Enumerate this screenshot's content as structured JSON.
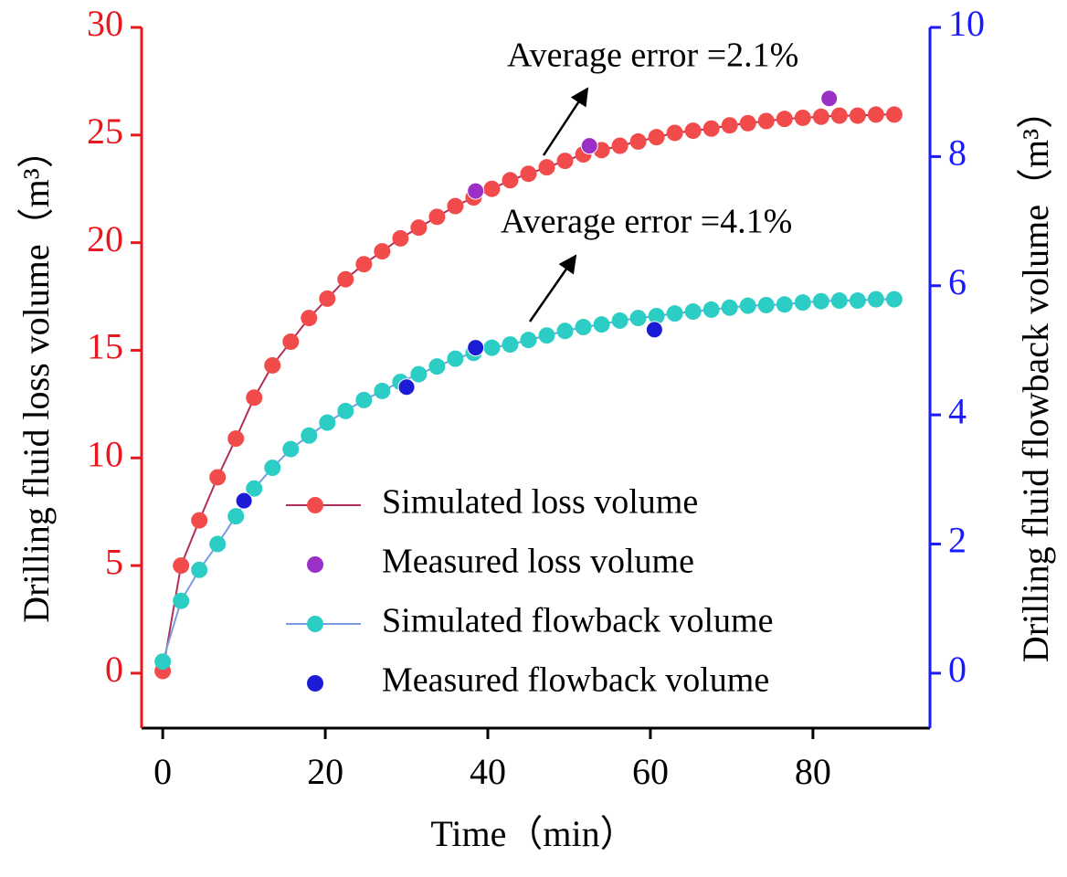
{
  "chart_data": {
    "type": "line",
    "xlabel": "Time（min）",
    "ylabel": "Drilling fluid loss volume（m³）",
    "y2label": "Drilling fluid flowback volume（m³）",
    "xlim": [
      -2.6,
      94.4
    ],
    "xticks": [
      0,
      20,
      40,
      60,
      80
    ],
    "ylim": [
      -2.55,
      30
    ],
    "yticks": [
      0,
      5,
      10,
      15,
      20,
      25,
      30
    ],
    "y2lim": [
      -0.85,
      10
    ],
    "y2ticks": [
      0,
      2,
      4,
      6,
      8,
      10
    ],
    "y_axis_color": "#e8191e",
    "y2_axis_color": "#1a1aff",
    "legend": "lower right",
    "annotations": [
      {
        "text": "Average error =2.1%"
      },
      {
        "text": "Average error =4.1%"
      }
    ],
    "series": [
      {
        "name": "Simulated loss volume",
        "mode": "line+markers",
        "color": "#f24b4b",
        "line_color": "#b0305a",
        "axis": "y",
        "x": [
          0,
          2.25,
          4.5,
          6.75,
          9,
          11.25,
          13.5,
          15.75,
          18,
          20.25,
          22.5,
          24.75,
          27,
          29.25,
          31.5,
          33.75,
          36,
          38.25,
          40.5,
          42.75,
          45,
          47.25,
          49.5,
          51.75,
          54,
          56.25,
          58.5,
          60.75,
          63,
          65.25,
          67.5,
          69.75,
          72,
          74.25,
          76.5,
          78.75,
          81,
          83.25,
          85.5,
          87.75,
          90
        ],
        "values": [
          0.1,
          5,
          7.1,
          9.1,
          10.9,
          12.8,
          14.3,
          15.4,
          16.5,
          17.4,
          18.3,
          19.0,
          19.6,
          20.2,
          20.7,
          21.2,
          21.7,
          22.1,
          22.5,
          22.9,
          23.2,
          23.5,
          23.8,
          24.1,
          24.3,
          24.5,
          24.7,
          24.9,
          25.1,
          25.2,
          25.3,
          25.45,
          25.55,
          25.65,
          25.75,
          25.8,
          25.85,
          25.9,
          25.9,
          25.95,
          25.95
        ]
      },
      {
        "name": "Measured loss volume",
        "mode": "markers",
        "color": "#9b30c8",
        "axis": "y",
        "x": [
          38.5,
          52.5,
          82
        ],
        "values": [
          22.4,
          24.5,
          26.7
        ]
      },
      {
        "name": "Simulated flowback volume",
        "mode": "line+markers",
        "color": "#2ccdc4",
        "line_color": "#7b9be0",
        "axis": "y2",
        "x": [
          0,
          2.25,
          4.5,
          6.75,
          9,
          11.25,
          13.5,
          15.75,
          18,
          20.25,
          22.5,
          24.75,
          27,
          29.25,
          31.5,
          33.75,
          36,
          38.25,
          40.5,
          42.75,
          45,
          47.25,
          49.5,
          51.75,
          54,
          56.25,
          58.5,
          60.75,
          63,
          65.25,
          67.5,
          69.75,
          72,
          74.25,
          76.5,
          78.75,
          81,
          83.25,
          85.5,
          87.75,
          90
        ],
        "values": [
          0.18,
          1.12,
          1.6,
          2.0,
          2.43,
          2.86,
          3.18,
          3.47,
          3.68,
          3.88,
          4.06,
          4.23,
          4.37,
          4.51,
          4.63,
          4.75,
          4.87,
          4.96,
          5.04,
          5.09,
          5.16,
          5.23,
          5.3,
          5.36,
          5.4,
          5.46,
          5.5,
          5.53,
          5.57,
          5.6,
          5.63,
          5.66,
          5.69,
          5.7,
          5.71,
          5.74,
          5.76,
          5.77,
          5.77,
          5.79,
          5.79
        ]
      },
      {
        "name": "Measured flowback volume",
        "mode": "markers",
        "color": "#1c1cd6",
        "axis": "y2",
        "x": [
          10,
          30,
          38.5,
          60.5
        ],
        "values": [
          2.67,
          4.43,
          5.04,
          5.32
        ]
      }
    ]
  }
}
